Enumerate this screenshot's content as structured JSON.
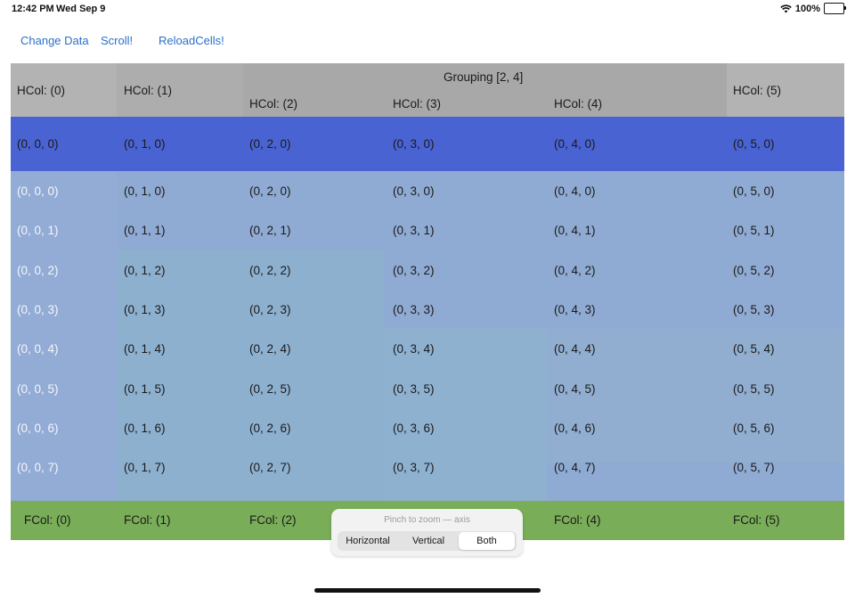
{
  "status": {
    "time": "12:42 PM",
    "date": "Wed Sep 9",
    "battery": "100%"
  },
  "toolbar": {
    "change_data": "Change Data",
    "scroll": "Scroll!",
    "reload": "ReloadCells!"
  },
  "header": {
    "group_title": "Grouping [2, 4]",
    "columns": [
      "HCol: (0)",
      "HCol: (1)",
      "HCol: (2)",
      "HCol: (3)",
      "HCol: (4)",
      "HCol: (5)"
    ]
  },
  "selected_row": [
    "(0, 0, 0)",
    "(0, 1, 0)",
    "(0, 2, 0)",
    "(0, 3, 0)",
    "(0, 4, 0)",
    "(0, 5, 0)"
  ],
  "rows": [
    [
      "(0, 0, 0)",
      "(0, 1, 0)",
      "(0, 2, 0)",
      "(0, 3, 0)",
      "(0, 4, 0)",
      "(0, 5, 0)"
    ],
    [
      "(0, 0, 1)",
      "(0, 1, 1)",
      "(0, 2, 1)",
      "(0, 3, 1)",
      "(0, 4, 1)",
      "(0, 5, 1)"
    ],
    [
      "(0, 0, 2)",
      "(0, 1, 2)",
      "(0, 2, 2)",
      "(0, 3, 2)",
      "(0, 4, 2)",
      "(0, 5, 2)"
    ],
    [
      "(0, 0, 3)",
      "(0, 1, 3)",
      "(0, 2, 3)",
      "(0, 3, 3)",
      "(0, 4, 3)",
      "(0, 5, 3)"
    ],
    [
      "(0, 0, 4)",
      "(0, 1, 4)",
      "(0, 2, 4)",
      "(0, 3, 4)",
      "(0, 4, 4)",
      "(0, 5, 4)"
    ],
    [
      "(0, 0, 5)",
      "(0, 1, 5)",
      "(0, 2, 5)",
      "(0, 3, 5)",
      "(0, 4, 5)",
      "(0, 5, 5)"
    ],
    [
      "(0, 0, 6)",
      "(0, 1, 6)",
      "(0, 2, 6)",
      "(0, 3, 6)",
      "(0, 4, 6)",
      "(0, 5, 6)"
    ],
    [
      "(0, 0, 7)",
      "(0, 1, 7)",
      "(0, 2, 7)",
      "(0, 3, 7)",
      "(0, 4, 7)",
      "(0, 5, 7)"
    ]
  ],
  "footer": [
    "FCol: (0)",
    "FCol: (1)",
    "FCol: (2)",
    "FCol: (4)",
    "FCol: (5)"
  ],
  "zoom": {
    "label": "Pinch to zoom — axis",
    "options": [
      "Horizontal",
      "Vertical",
      "Both"
    ],
    "selected": "Both"
  },
  "colors": {
    "header": "#a8a8a8",
    "selected_row": "#4a63d2",
    "body": "#90abd3",
    "footer": "#79ad58",
    "link": "#2a71c9"
  },
  "icons": [
    "wifi-icon",
    "battery-icon"
  ]
}
